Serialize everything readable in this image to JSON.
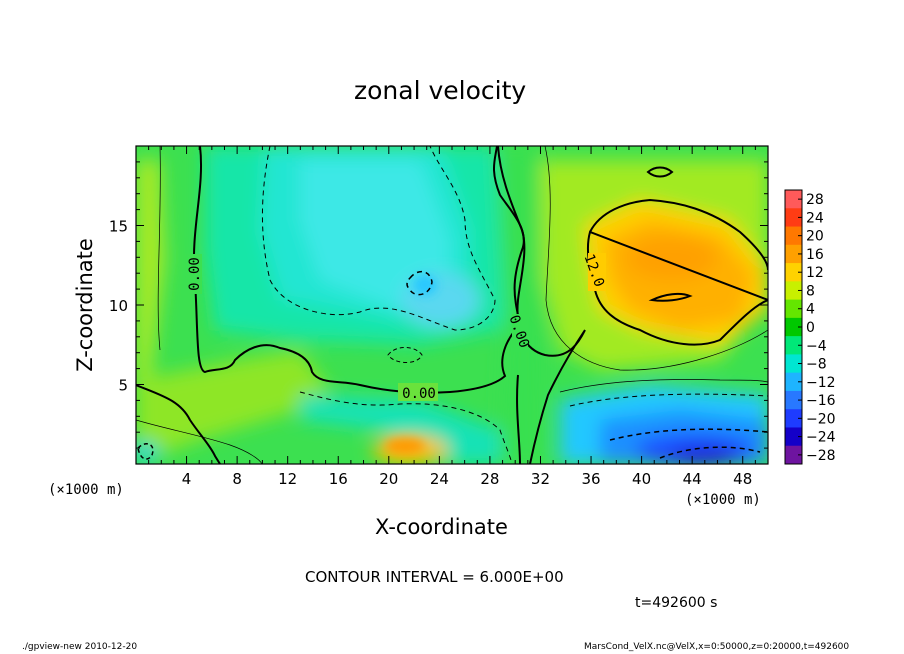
{
  "chart_data": {
    "type": "heatmap",
    "title": "zonal velocity",
    "xlabel": "X-coordinate",
    "ylabel": "Z-coordinate",
    "x_units_label": "(×1000 m)",
    "x_units_label_right": "(×1000 m)",
    "xlim": [
      0,
      50
    ],
    "ylim": [
      0,
      20
    ],
    "x_ticks": [
      4,
      8,
      12,
      16,
      20,
      24,
      28,
      32,
      36,
      40,
      44,
      48
    ],
    "y_ticks": [
      5,
      10,
      15
    ],
    "colorbar_levels": [
      28,
      24,
      20,
      16,
      12,
      8,
      4,
      0,
      -4,
      -8,
      -12,
      -16,
      -20,
      -24,
      -28
    ],
    "colorbar_colors": [
      "#ff5a5a",
      "#ff3c14",
      "#ff7800",
      "#ffa000",
      "#ffd200",
      "#c8f000",
      "#64e600",
      "#00c800",
      "#00e878",
      "#00e6d2",
      "#1eb4ff",
      "#2878ff",
      "#1e3cff",
      "#1400c8",
      "#6e14a0"
    ],
    "contour_interval_text": "CONTOUR INTERVAL = 6.000E+00",
    "contour_labels": [
      "0.00",
      "0.00",
      "0.00",
      "12.0"
    ],
    "features": [
      {
        "name": "positive core upper right",
        "x": 42,
        "z": 12.5,
        "value": 15
      },
      {
        "name": "negative core lower right",
        "x": 44,
        "z": 1,
        "value": -20
      },
      {
        "name": "positive patch near ground",
        "x": 22,
        "z": 1.2,
        "value": 13
      },
      {
        "name": "negative region upper left",
        "x": 20,
        "z": 13,
        "value": -9
      }
    ]
  },
  "footer": {
    "time_text": "t=492600 s",
    "left_text": "./gpview-new  2010-12-20",
    "right_text": "MarsCond_VelX.nc@VelX,x=0:50000,z=0:20000,t=492600"
  }
}
